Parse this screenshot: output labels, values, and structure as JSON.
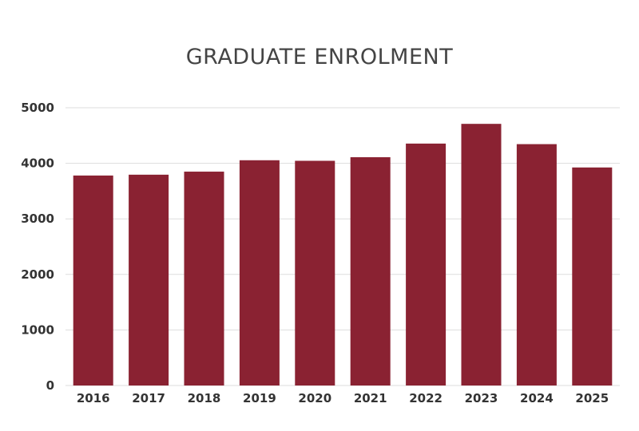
{
  "chart_data": {
    "type": "bar",
    "title": "GRADUATE ENROLMENT",
    "categories": [
      "2016",
      "2017",
      "2018",
      "2019",
      "2020",
      "2021",
      "2022",
      "2023",
      "2024",
      "2025"
    ],
    "values": [
      3780,
      3795,
      3850,
      4055,
      4045,
      4110,
      4355,
      4710,
      4345,
      3925
    ],
    "ylim": [
      0,
      5000
    ],
    "yticks": [
      0,
      1000,
      2000,
      3000,
      4000,
      5000
    ],
    "xlabel": "",
    "ylabel": "",
    "grid": true,
    "bar_color": "#8a2232",
    "gridline_color": "#dddddd"
  }
}
